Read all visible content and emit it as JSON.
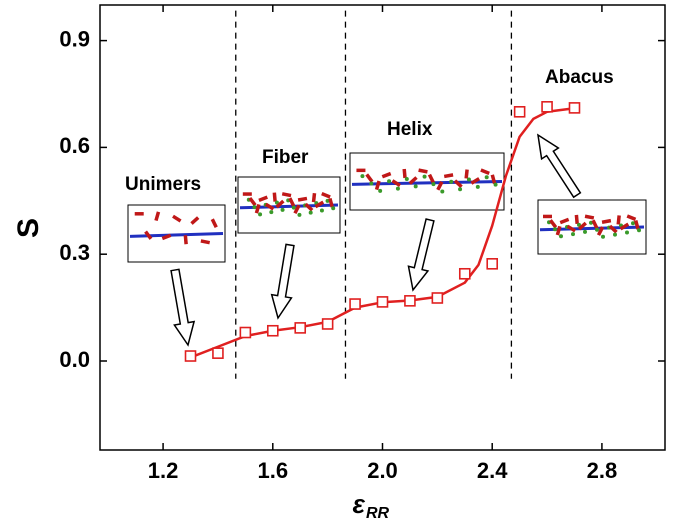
{
  "chart_data": {
    "type": "line",
    "y_label": "S",
    "x_label": "ε",
    "x_label_sub": "RR",
    "x": [
      1.3,
      1.4,
      1.5,
      1.6,
      1.7,
      1.8,
      1.9,
      2.0,
      2.1,
      2.2,
      2.3,
      2.4,
      2.5,
      2.6,
      2.7
    ],
    "series": [
      {
        "color": "#e02020",
        "values": [
          0.014,
          0.022,
          0.08,
          0.085,
          0.093,
          0.104,
          0.16,
          0.166,
          0.169,
          0.177,
          0.245,
          0.273,
          0.7,
          0.714,
          0.711
        ]
      }
    ],
    "fit": {
      "color": "#e02020",
      "x": [
        1.3,
        1.4,
        1.5,
        1.6,
        1.7,
        1.8,
        1.85,
        1.9,
        2.0,
        2.1,
        2.2,
        2.3,
        2.35,
        2.4,
        2.45,
        2.5,
        2.55,
        2.6,
        2.7
      ],
      "values": [
        0.01,
        0.04,
        0.07,
        0.085,
        0.095,
        0.11,
        0.13,
        0.15,
        0.165,
        0.17,
        0.18,
        0.22,
        0.27,
        0.38,
        0.52,
        0.63,
        0.68,
        0.7,
        0.71
      ]
    },
    "dividers": [
      1.465,
      1.865,
      2.47
    ],
    "annotations": [
      "Unimers",
      "Fiber",
      "Helix",
      "Abacus"
    ],
    "xlim": [
      0.97,
      3.03
    ],
    "ylim": [
      -0.25,
      1.0
    ],
    "xticks": [
      1.2,
      1.6,
      {
        "value": 2,
        "label": "2.0"
      },
      2.4,
      2.8
    ],
    "yticks": [
      {
        "value": 0,
        "label": "0.0"
      },
      0.3,
      0.6,
      0.9
    ]
  }
}
